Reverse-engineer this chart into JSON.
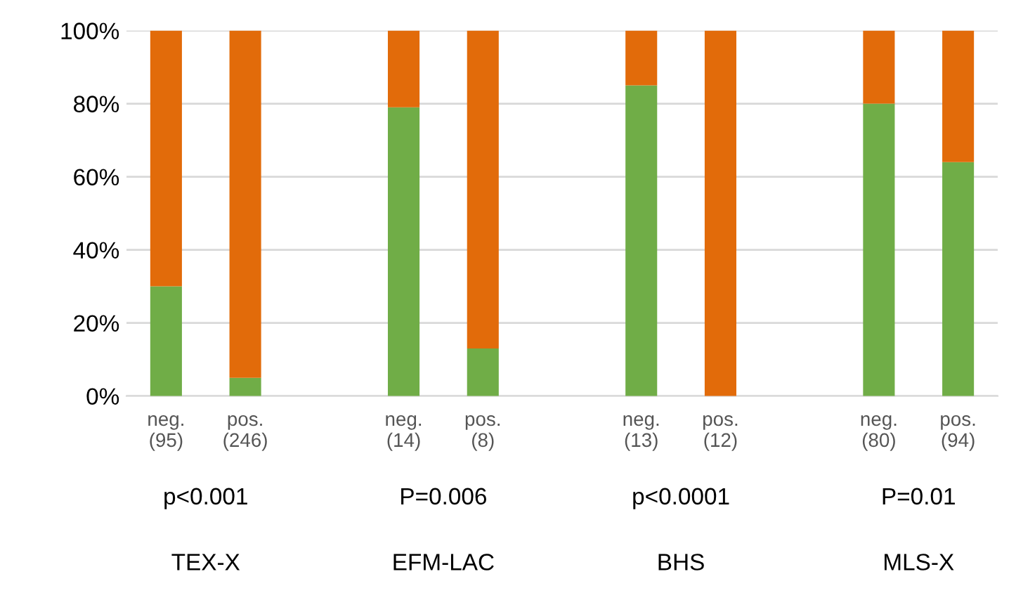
{
  "chart_data": {
    "type": "bar",
    "stacked": true,
    "categories": [
      "neg.\n(95)",
      "pos.\n(246)",
      null,
      "neg.\n(14)",
      "pos.\n(8)",
      null,
      "neg.\n(13)",
      "pos.\n(12)",
      null,
      "neg.\n(80)",
      "pos.\n(94)"
    ],
    "series": [
      {
        "color": "#70ad47",
        "values": [
          30,
          5,
          null,
          79,
          13,
          null,
          85,
          0,
          null,
          80,
          64
        ]
      },
      {
        "color": "#e26b0a",
        "values": [
          70,
          95,
          null,
          21,
          87,
          null,
          15,
          100,
          null,
          20,
          36
        ]
      }
    ],
    "ylim": [
      0,
      100
    ],
    "yticks": [
      {
        "value": 0,
        "label": "0%"
      },
      {
        "value": 20,
        "label": "20%"
      },
      {
        "value": 40,
        "label": "40%"
      },
      {
        "value": 60,
        "label": "60%"
      },
      {
        "value": 80,
        "label": "80%"
      },
      {
        "value": 100,
        "label": "100%"
      }
    ],
    "grid": "y",
    "legend": false,
    "annotations": [
      "p<0.001",
      "P=0.006",
      "p<0.0001",
      "P=0.01",
      "TEX-X",
      "EFM-LAC",
      "BHS",
      "MLS-X"
    ]
  }
}
